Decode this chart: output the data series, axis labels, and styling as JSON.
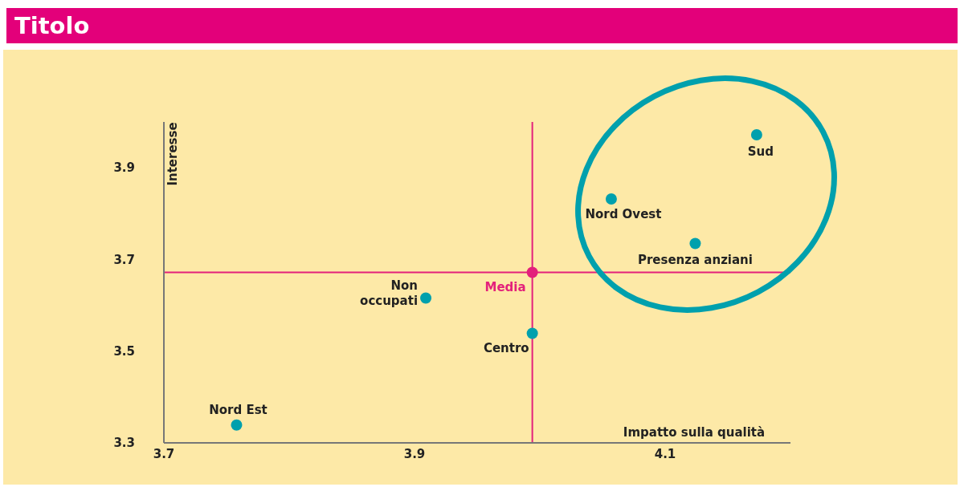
{
  "chart_data": {
    "type": "scatter",
    "title": "Titolo",
    "xlabel": "Impatto sulla qualità",
    "ylabel": "Interesse",
    "xlim": [
      3.7,
      4.2
    ],
    "xticks": [
      3.7,
      3.9,
      4.1
    ],
    "ylim": [
      3.3,
      4.0
    ],
    "yticks": [
      3.3,
      3.5,
      3.7,
      3.9
    ],
    "marker": "circle",
    "series": [
      {
        "color": "#00a0ad",
        "x": [
          4.173,
          4.057,
          4.124,
          3.909,
          3.994,
          3.758
        ],
        "values": [
          3.972,
          3.832,
          3.735,
          3.616,
          3.539,
          3.339
        ]
      },
      {
        "name": "Media",
        "color": "#e3217b",
        "x": [
          3.994
        ],
        "values": [
          3.672
        ]
      }
    ],
    "ref_lines": [
      {
        "axis": "x",
        "value": 3.994,
        "color": "#e3217b"
      },
      {
        "axis": "y",
        "value": 3.672,
        "color": "#e3217b"
      }
    ],
    "annotations": [
      {
        "text": "Sud",
        "x": 4.173,
        "y": 3.972
      },
      {
        "text": "Nord Ovest",
        "x": 4.057,
        "y": 3.832
      },
      {
        "text": "Presenza anziani",
        "x": 4.124,
        "y": 3.735
      },
      {
        "text": "Non\noccupati",
        "x": 3.909,
        "y": 3.616
      },
      {
        "text": "Centro",
        "x": 3.994,
        "y": 3.539
      },
      {
        "text": "Nord Est",
        "x": 3.758,
        "y": 3.339
      }
    ]
  }
}
